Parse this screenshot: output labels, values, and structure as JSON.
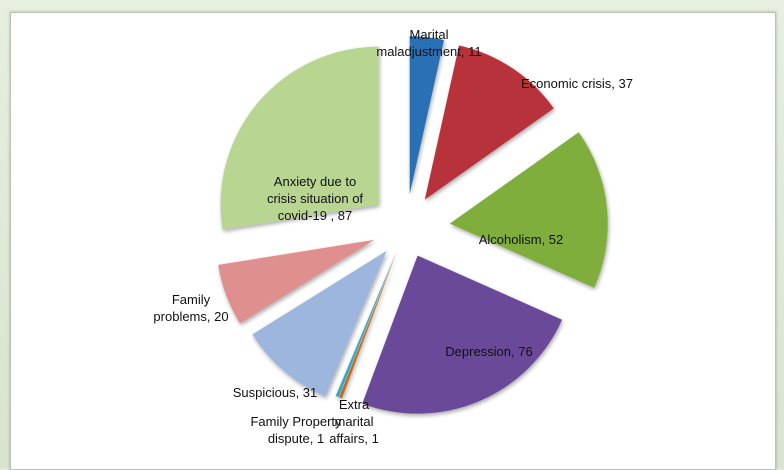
{
  "chart_data": {
    "type": "pie",
    "exploded": true,
    "title": "",
    "slices": [
      {
        "category": "Marital maladjustment",
        "value": 11,
        "color": "#2a6fb5",
        "label_lines": [
          "Marital",
          "maladjustment, 11"
        ]
      },
      {
        "category": "Economic crisis",
        "value": 37,
        "color": "#b8323b",
        "label_lines": [
          "Economic crisis, 37"
        ]
      },
      {
        "category": "Alcoholism",
        "value": 52,
        "color": "#7fae3e",
        "label_lines": [
          "Alcoholism, 52"
        ]
      },
      {
        "category": "Depression",
        "value": 76,
        "color": "#6b4a98",
        "label_lines": [
          "Depression, 76"
        ]
      },
      {
        "category": "Extra marital affairs",
        "value": 1,
        "color": "#e07b22",
        "label_lines": [
          "Extra",
          "marital",
          "affairs, 1"
        ]
      },
      {
        "category": "Family Property dispute",
        "value": 1,
        "color": "#33a8c8",
        "label_lines": [
          "Family Property",
          "dispute, 1"
        ]
      },
      {
        "category": "Suspicious",
        "value": 31,
        "color": "#9db6dd",
        "label_lines": [
          "Suspicious, 31"
        ]
      },
      {
        "category": "Family problems",
        "value": 20,
        "color": "#df8f8d",
        "label_lines": [
          "Family",
          "problems, 20"
        ]
      },
      {
        "category": "Anxiety due to crisis situation of covid-19",
        "value": 87,
        "color": "#b8d592",
        "label_lines": [
          "Anxiety due to",
          "crisis situation  of",
          "covid-19 , 87"
        ]
      }
    ]
  }
}
